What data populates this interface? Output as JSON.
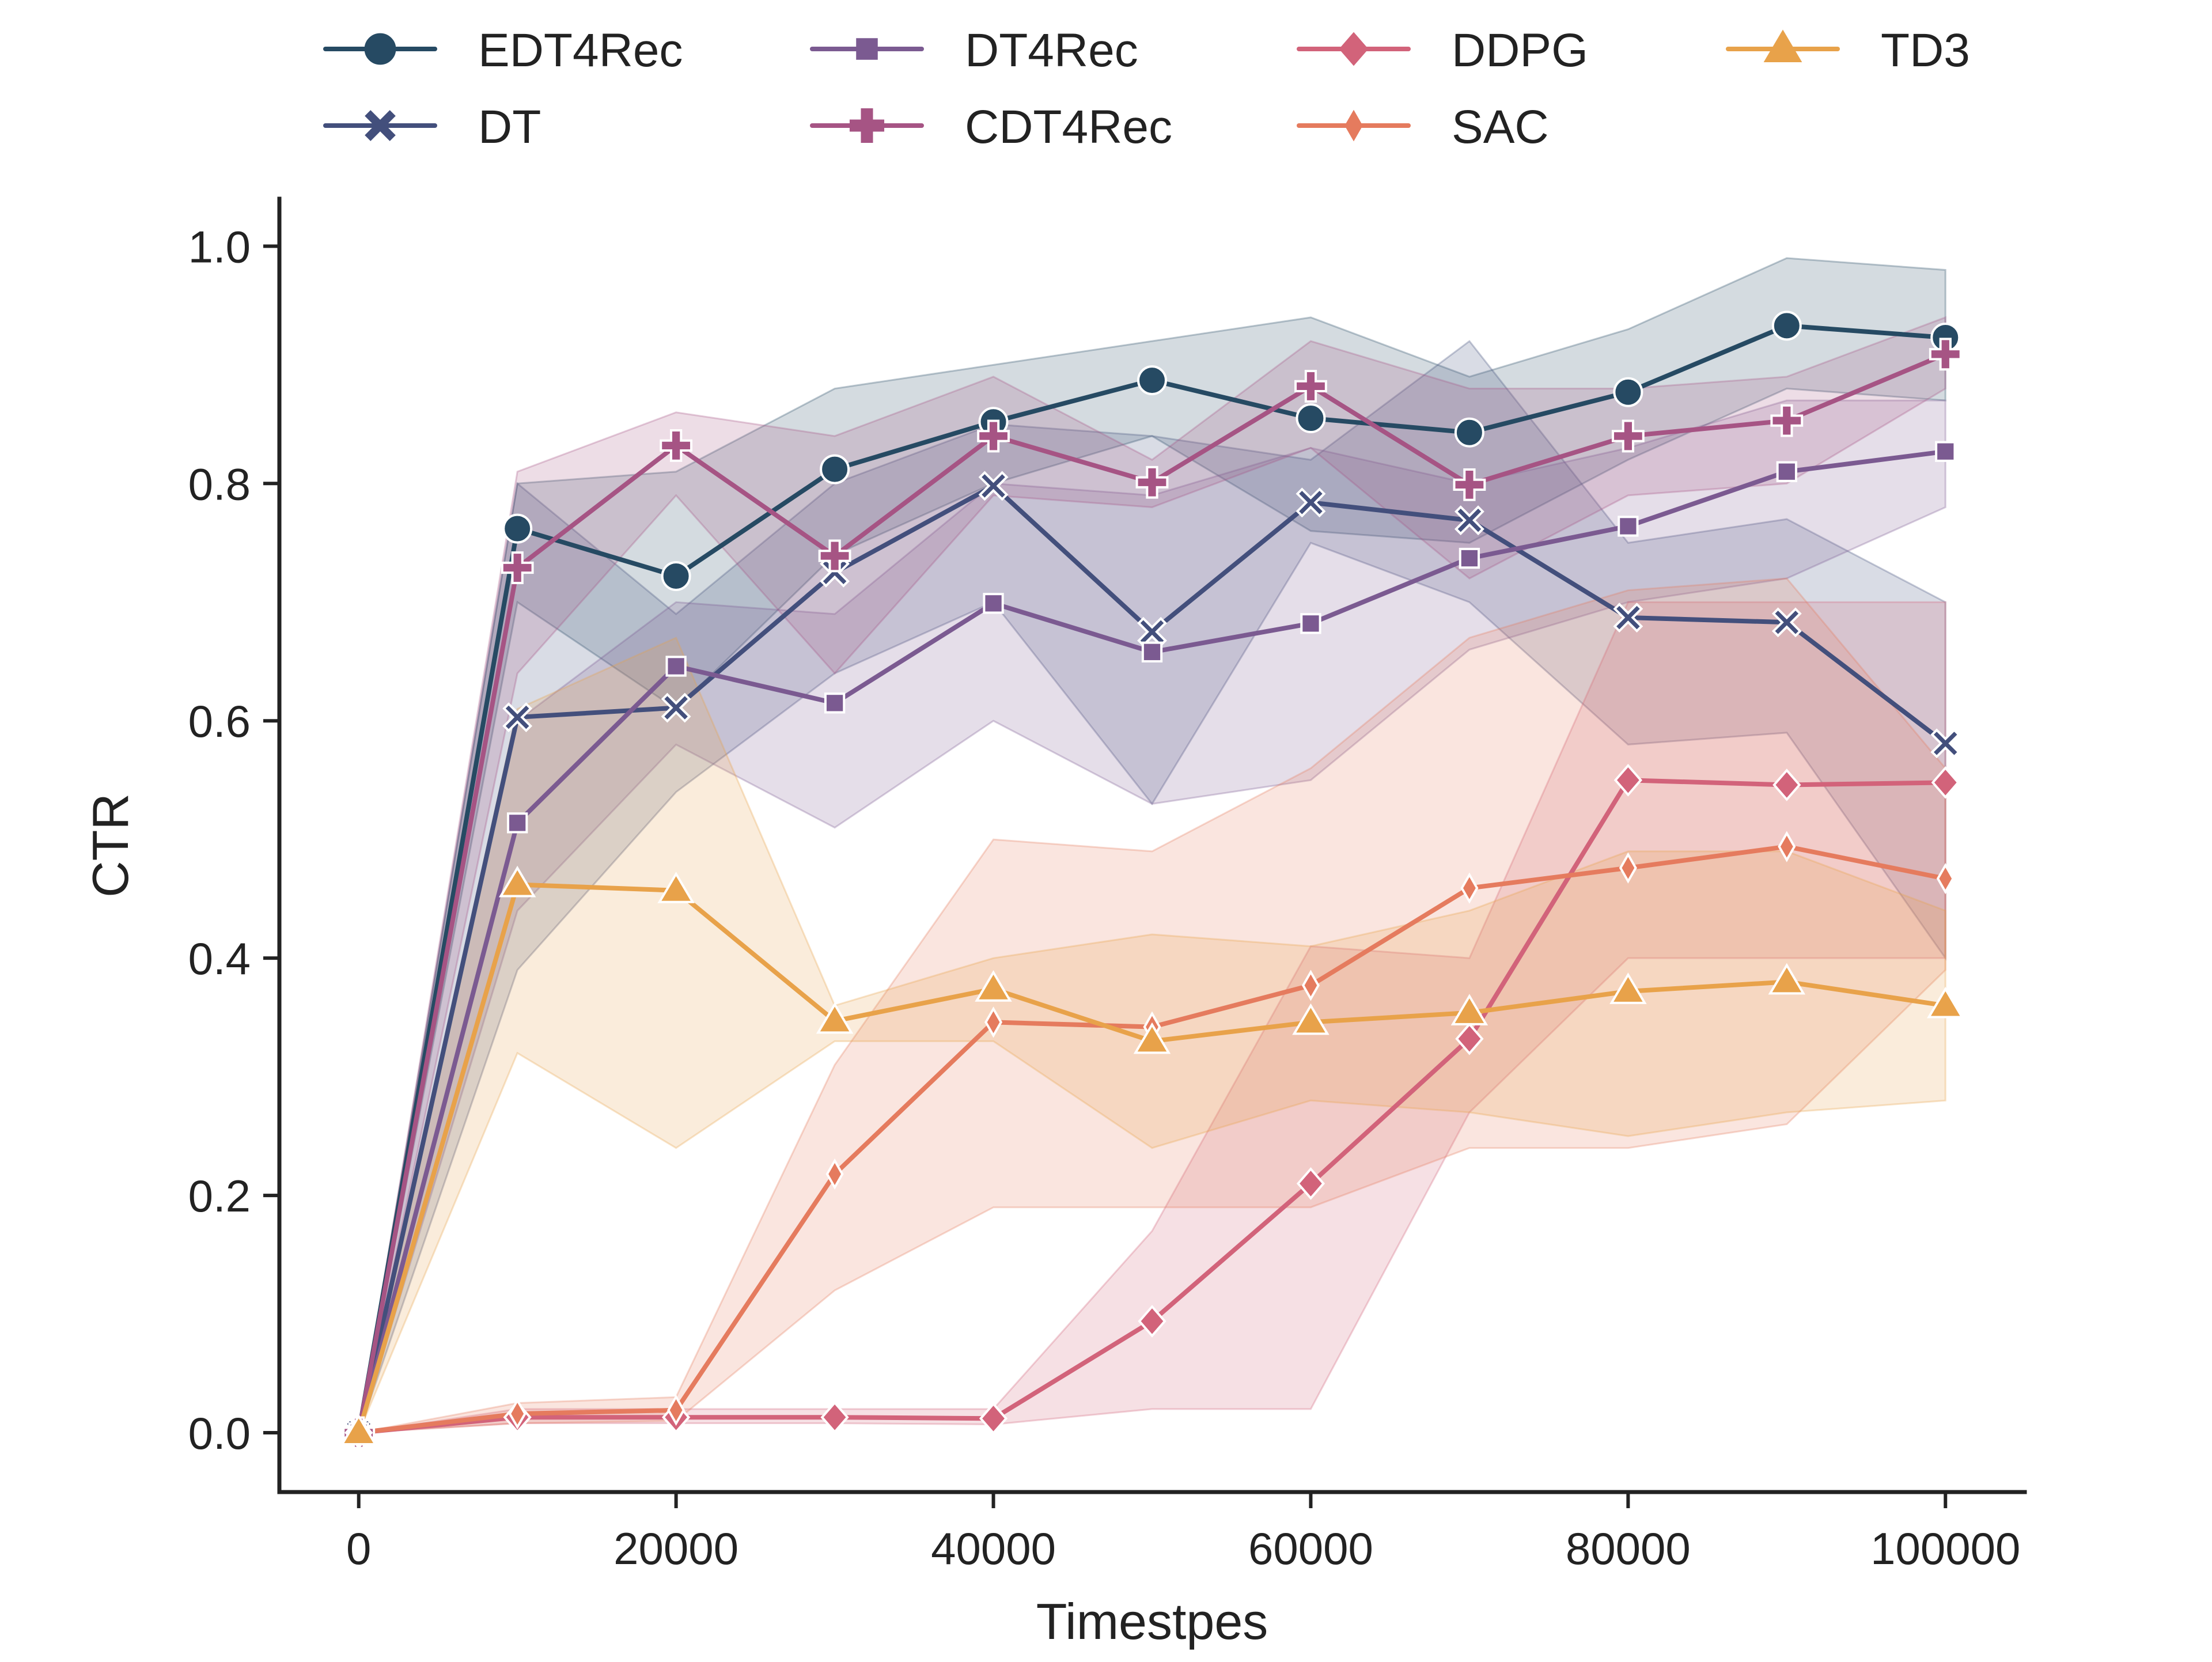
{
  "chart_data": {
    "type": "line",
    "title": "",
    "xlabel": "Timestpes",
    "ylabel": "CTR",
    "xlim": [
      -5000,
      105000
    ],
    "ylim": [
      -0.05,
      1.04
    ],
    "x": [
      0,
      10000,
      20000,
      30000,
      40000,
      50000,
      60000,
      70000,
      80000,
      90000,
      100000
    ],
    "xticks": [
      0,
      20000,
      40000,
      60000,
      80000,
      100000
    ],
    "xtick_labels": [
      "0",
      "20000",
      "40000",
      "60000",
      "80000",
      "100000"
    ],
    "yticks": [
      0.0,
      0.2,
      0.4,
      0.6,
      0.8,
      1.0
    ],
    "ytick_labels": [
      "0.0",
      "0.2",
      "0.4",
      "0.6",
      "0.8",
      "1.0"
    ],
    "legend_position": "top, outside plot, 4 columns",
    "series": [
      {
        "name": "EDT4Rec",
        "color": "#264a63",
        "marker": "circle",
        "values": [
          0.0,
          0.762,
          0.722,
          0.812,
          0.852,
          0.887,
          0.855,
          0.843,
          0.877,
          0.933,
          0.923
        ],
        "lower": [
          0.0,
          0.7,
          0.61,
          0.74,
          0.8,
          0.84,
          0.76,
          0.75,
          0.82,
          0.88,
          0.87
        ],
        "upper": [
          0.0,
          0.8,
          0.81,
          0.88,
          0.9,
          0.92,
          0.94,
          0.89,
          0.93,
          0.99,
          0.98
        ]
      },
      {
        "name": "DT",
        "color": "#434f7c",
        "marker": "x",
        "values": [
          0.0,
          0.603,
          0.611,
          0.725,
          0.798,
          0.675,
          0.784,
          0.769,
          0.687,
          0.683,
          0.581
        ],
        "lower": [
          0.0,
          0.39,
          0.54,
          0.64,
          0.7,
          0.53,
          0.75,
          0.7,
          0.58,
          0.59,
          0.4
        ],
        "upper": [
          0.0,
          0.8,
          0.69,
          0.8,
          0.85,
          0.84,
          0.82,
          0.92,
          0.75,
          0.77,
          0.7
        ]
      },
      {
        "name": "DT4Rec",
        "color": "#7b5a91",
        "marker": "square",
        "values": [
          0.0,
          0.514,
          0.646,
          0.615,
          0.699,
          0.658,
          0.682,
          0.737,
          0.764,
          0.81,
          0.827
        ],
        "lower": [
          0.0,
          0.44,
          0.58,
          0.51,
          0.6,
          0.53,
          0.55,
          0.66,
          0.7,
          0.72,
          0.78
        ],
        "upper": [
          0.0,
          0.6,
          0.7,
          0.69,
          0.8,
          0.79,
          0.83,
          0.8,
          0.83,
          0.87,
          0.87
        ]
      },
      {
        "name": "CDT4Rec",
        "color": "#a65484",
        "marker": "plus",
        "values": [
          0.0,
          0.729,
          0.832,
          0.739,
          0.84,
          0.801,
          0.882,
          0.799,
          0.84,
          0.853,
          0.909
        ],
        "lower": [
          0.0,
          0.64,
          0.79,
          0.64,
          0.79,
          0.78,
          0.83,
          0.72,
          0.79,
          0.8,
          0.88
        ],
        "upper": [
          0.0,
          0.81,
          0.86,
          0.84,
          0.89,
          0.82,
          0.92,
          0.88,
          0.88,
          0.89,
          0.94
        ]
      },
      {
        "name": "DDPG",
        "color": "#d2637a",
        "marker": "diamond",
        "values": [
          0.0,
          0.013,
          0.013,
          0.013,
          0.012,
          0.094,
          0.21,
          0.332,
          0.55,
          0.546,
          0.548
        ],
        "lower": [
          0.0,
          0.008,
          0.008,
          0.008,
          0.007,
          0.02,
          0.02,
          0.27,
          0.4,
          0.4,
          0.4
        ],
        "upper": [
          0.0,
          0.02,
          0.02,
          0.02,
          0.02,
          0.17,
          0.41,
          0.4,
          0.7,
          0.7,
          0.7
        ]
      },
      {
        "name": "SAC",
        "color": "#e57b5e",
        "marker": "thin-diamond",
        "values": [
          0.0,
          0.016,
          0.019,
          0.218,
          0.346,
          0.342,
          0.377,
          0.459,
          0.476,
          0.494,
          0.467
        ],
        "lower": [
          0.0,
          0.008,
          0.01,
          0.12,
          0.19,
          0.19,
          0.19,
          0.24,
          0.24,
          0.26,
          0.39
        ],
        "upper": [
          0.0,
          0.025,
          0.03,
          0.31,
          0.5,
          0.49,
          0.56,
          0.67,
          0.71,
          0.72,
          0.56
        ]
      },
      {
        "name": "TD3",
        "color": "#e8a24a",
        "marker": "triangle",
        "values": [
          0.0,
          0.462,
          0.457,
          0.347,
          0.374,
          0.33,
          0.346,
          0.354,
          0.372,
          0.38,
          0.36
        ],
        "lower": [
          0.0,
          0.32,
          0.24,
          0.33,
          0.33,
          0.24,
          0.28,
          0.27,
          0.25,
          0.27,
          0.28
        ],
        "upper": [
          0.0,
          0.61,
          0.67,
          0.36,
          0.4,
          0.42,
          0.41,
          0.44,
          0.49,
          0.49,
          0.44
        ]
      }
    ]
  }
}
